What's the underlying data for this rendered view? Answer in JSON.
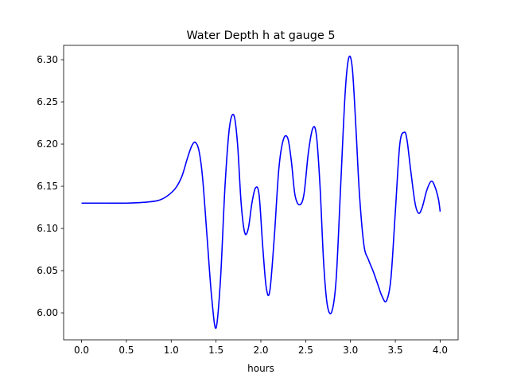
{
  "chart_data": {
    "type": "line",
    "title": "Water Depth h at gauge 5",
    "xlabel": "hours",
    "ylabel": "",
    "xlim": [
      -0.2,
      4.2
    ],
    "ylim": [
      5.968,
      6.317
    ],
    "xticks": [
      "0.0",
      "0.5",
      "1.0",
      "1.5",
      "2.0",
      "2.5",
      "3.0",
      "3.5",
      "4.0"
    ],
    "yticks": [
      "6.00",
      "6.05",
      "6.10",
      "6.15",
      "6.20",
      "6.25",
      "6.30"
    ],
    "grid": false,
    "legend": "none",
    "series": [
      {
        "color": "#0000ff",
        "x": [
          0.0,
          0.25,
          0.5,
          0.7,
          0.85,
          0.95,
          1.05,
          1.12,
          1.18,
          1.23,
          1.27,
          1.31,
          1.35,
          1.4,
          1.45,
          1.5,
          1.55,
          1.6,
          1.65,
          1.7,
          1.74,
          1.78,
          1.82,
          1.86,
          1.9,
          1.94,
          1.98,
          2.02,
          2.06,
          2.1,
          2.15,
          2.2,
          2.25,
          2.3,
          2.34,
          2.38,
          2.43,
          2.48,
          2.53,
          2.58,
          2.62,
          2.66,
          2.7,
          2.74,
          2.79,
          2.84,
          2.89,
          2.94,
          2.98,
          3.02,
          3.06,
          3.1,
          3.15,
          3.2,
          3.25,
          3.3,
          3.35,
          3.4,
          3.45,
          3.5,
          3.55,
          3.6,
          3.63,
          3.67,
          3.72,
          3.76,
          3.8,
          3.85,
          3.9,
          3.94,
          3.98,
          4.0
        ],
        "y": [
          6.13,
          6.13,
          6.13,
          6.131,
          6.133,
          6.138,
          6.148,
          6.162,
          6.183,
          6.198,
          6.202,
          6.192,
          6.16,
          6.09,
          6.02,
          5.982,
          6.04,
          6.15,
          6.22,
          6.234,
          6.2,
          6.13,
          6.095,
          6.1,
          6.13,
          6.148,
          6.14,
          6.08,
          6.03,
          6.026,
          6.09,
          6.17,
          6.205,
          6.207,
          6.18,
          6.14,
          6.128,
          6.14,
          6.19,
          6.219,
          6.21,
          6.15,
          6.06,
          6.01,
          6.001,
          6.04,
          6.15,
          6.26,
          6.302,
          6.29,
          6.22,
          6.14,
          6.08,
          6.063,
          6.05,
          6.035,
          6.02,
          6.014,
          6.04,
          6.12,
          6.2,
          6.214,
          6.205,
          6.17,
          6.13,
          6.118,
          6.125,
          6.145,
          6.156,
          6.15,
          6.135,
          6.12
        ]
      }
    ]
  }
}
